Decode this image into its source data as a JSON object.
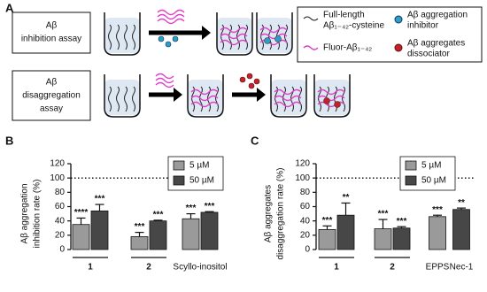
{
  "panels": [
    "A",
    "B",
    "C"
  ],
  "diagram": {
    "rows": [
      {
        "label": [
          "Aβ",
          "inhibition assay"
        ]
      },
      {
        "label": [
          "Aβ",
          "disaggregation",
          "assay"
        ]
      }
    ],
    "legend": [
      {
        "label": [
          "Full-length",
          "Aβ₁₋₄₂-cysteine"
        ]
      },
      {
        "label": [
          "Aβ aggregation",
          "inhibitor"
        ]
      },
      {
        "label": [
          "Fluor-Aβ₁₋₄₂"
        ]
      },
      {
        "label": [
          "Aβ aggregates",
          "dissociator"
        ]
      }
    ]
  },
  "chart_data": [
    {
      "type": "bar",
      "y_label": [
        "Aβ aggregation",
        "inhibition rate (%)"
      ],
      "categories": [
        "1",
        "2",
        "Scyllo-inositol"
      ],
      "series": [
        {
          "name": "5 µM",
          "color": "#9a9a9a",
          "values": [
            35,
            18,
            43
          ],
          "errors": [
            9,
            6,
            7
          ],
          "labels": [
            "****",
            "***",
            "***"
          ]
        },
        {
          "name": "50 µM",
          "color": "#474747",
          "values": [
            54,
            40,
            52
          ],
          "errors": [
            9,
            1,
            1
          ],
          "labels": [
            "***",
            "***",
            "***"
          ]
        }
      ],
      "ylim": [
        0,
        120
      ],
      "yticks": [
        0,
        20,
        40,
        60,
        80,
        100,
        120
      ],
      "reference_line": 100
    },
    {
      "type": "bar",
      "y_label": [
        "Aβ aggregates",
        "disaggregation rate (%)"
      ],
      "categories": [
        "1",
        "2",
        "EPPS",
        "Nec-1"
      ],
      "series": [
        {
          "name": "5 µM",
          "color": "#9a9a9a",
          "values": [
            28,
            29,
            46,
            null
          ],
          "errors": [
            5,
            13,
            2,
            null
          ],
          "labels": [
            "***",
            "***",
            "***",
            null
          ]
        },
        {
          "name": "50 µM",
          "color": "#474747",
          "values": [
            48,
            30,
            null,
            56
          ],
          "errors": [
            17,
            2,
            null,
            2
          ],
          "labels": [
            "**",
            "***",
            null,
            "**"
          ]
        }
      ],
      "ylim": [
        0,
        120
      ],
      "yticks": [
        0,
        20,
        40,
        60,
        80,
        100,
        120
      ],
      "reference_line": 100
    }
  ]
}
